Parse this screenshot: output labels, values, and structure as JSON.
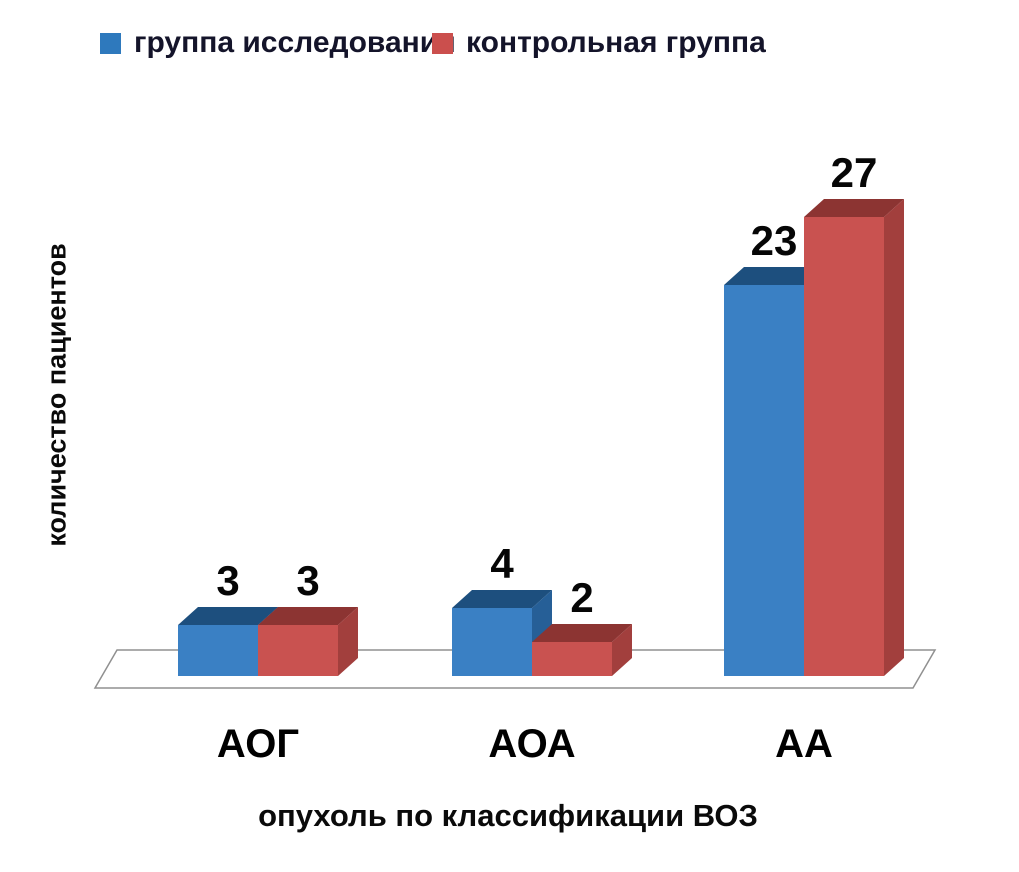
{
  "legend": {
    "items": [
      {
        "label": "группа исследования",
        "color": "#2e79bd"
      },
      {
        "label": "контрольная группа",
        "color": "#cb4f4d"
      }
    ]
  },
  "chart_data": {
    "type": "bar",
    "style": "3d-column",
    "title": "",
    "categories": [
      "АОГ",
      "АОА",
      "АА"
    ],
    "series": [
      {
        "name": "группа исследования",
        "values": [
          3,
          4,
          23
        ],
        "color_front": "#3a80c4",
        "color_top": "#1d4f7e",
        "color_side": "#265f97"
      },
      {
        "name": "контрольная группа",
        "values": [
          3,
          2,
          27
        ],
        "color_front": "#c95250",
        "color_top": "#8c3432",
        "color_side": "#a23f3d"
      }
    ],
    "xlabel": "опухоль по классификации ВОЗ",
    "ylabel": "количество пациентов",
    "ylim": [
      0,
      27
    ],
    "grid": false,
    "legend_position": "top",
    "background": "#ffffff"
  }
}
